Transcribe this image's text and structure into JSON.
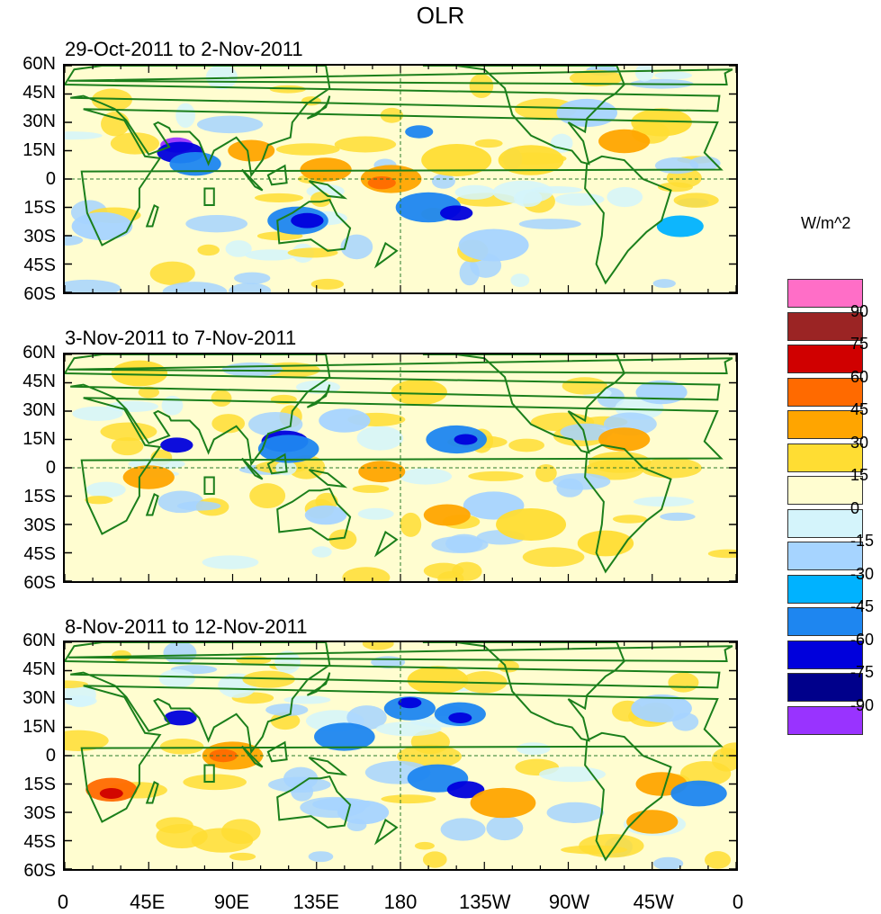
{
  "title": "OLR",
  "panels": [
    {
      "title": "29-Oct-2011 to 2-Nov-2011"
    },
    {
      "title": "3-Nov-2011 to 7-Nov-2011"
    },
    {
      "title": "8-Nov-2011 to 12-Nov-2011"
    }
  ],
  "lat_labels": [
    "60N",
    "45N",
    "30N",
    "15N",
    "0",
    "15S",
    "30S",
    "45S",
    "60S"
  ],
  "lon_labels": [
    "0",
    "45E",
    "90E",
    "135E",
    "180",
    "135W",
    "90W",
    "45W",
    "0"
  ],
  "colorbar": {
    "title": "W/m^2",
    "labels": [
      "90",
      "75",
      "60",
      "45",
      "30",
      "15",
      "0",
      "-15",
      "-30",
      "-45",
      "-60",
      "-75",
      "-90"
    ],
    "colors": [
      "#ff6ec7",
      "#9b2424",
      "#d00000",
      "#ff6a00",
      "#ffa500",
      "#ffdd33",
      "#fffdd0",
      "#d4f4fb",
      "#a6d4ff",
      "#00b2ff",
      "#1e86f0",
      "#0000dc",
      "#00008b",
      "#9933ff"
    ]
  },
  "map_colors": {
    "land": "#1b7f1b",
    "positive": [
      "#ffdd33",
      "#ffa500",
      "#ff6a00",
      "#d00000"
    ],
    "negative": [
      "#d4f4fb",
      "#a6d4ff",
      "#00b2ff",
      "#1e86f0",
      "#0000dc",
      "#00008b",
      "#9933ff"
    ]
  }
}
